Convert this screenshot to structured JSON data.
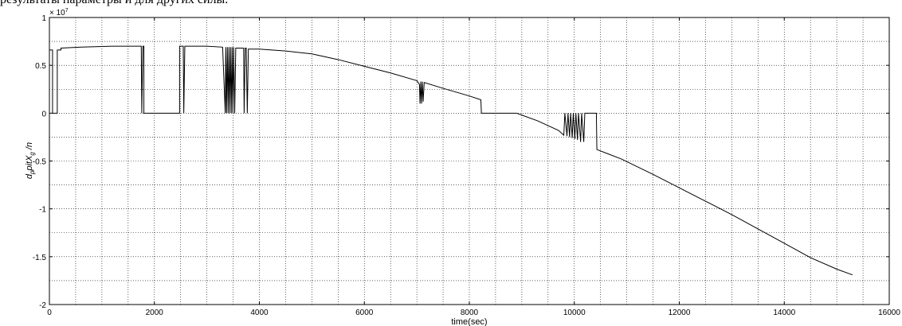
{
  "header_text": "результаты параметры и для других силы.",
  "chart_data": {
    "type": "line",
    "xlabel": "time(sec)",
    "ylabel": "d_p pitX_g /n",
    "ylabel_parts": {
      "base": "d",
      "sub1": "p",
      "mid": "pitX",
      "sub2": "g",
      "tail": " /n"
    },
    "exponent_label": "× 10",
    "exponent_power": "7",
    "xlim": [
      0,
      16000
    ],
    "ylim": [
      -2,
      1
    ],
    "x_ticks": [
      0,
      2000,
      4000,
      6000,
      8000,
      10000,
      12000,
      14000,
      16000
    ],
    "x_tick_labels": [
      "0",
      "2000",
      "4000",
      "6000",
      "8000",
      "10000",
      "12000",
      "14000",
      "16000"
    ],
    "y_ticks": [
      1,
      0.5,
      0,
      -0.5,
      -1,
      -1.5,
      -2
    ],
    "y_tick_labels": [
      "1",
      "0.5",
      "0",
      "-0.5",
      "-1",
      "-1.5",
      "-2"
    ],
    "grid": true,
    "grid_minor_x_step": 500,
    "grid_minor_y_step": 0.25,
    "line_color": "#000000",
    "series": [
      {
        "points": [
          [
            0,
            0
          ],
          [
            0,
            0.66
          ],
          [
            60,
            0.66
          ],
          [
            60,
            0
          ],
          [
            150,
            0
          ],
          [
            150,
            0.66
          ],
          [
            220,
            0.66
          ],
          [
            220,
            0.68
          ],
          [
            600,
            0.69
          ],
          [
            1200,
            0.7
          ],
          [
            1750,
            0.7
          ],
          [
            1760,
            0
          ],
          [
            1780,
            0.7
          ],
          [
            1800,
            0.7
          ],
          [
            1800,
            0
          ],
          [
            2480,
            0
          ],
          [
            2480,
            0.7
          ],
          [
            2550,
            0.7
          ],
          [
            2560,
            0
          ],
          [
            2580,
            0.7
          ],
          [
            3000,
            0.7
          ],
          [
            3300,
            0.69
          ],
          [
            3350,
            0
          ],
          [
            3360,
            0.69
          ],
          [
            3375,
            0
          ],
          [
            3390,
            0.69
          ],
          [
            3405,
            0
          ],
          [
            3420,
            0.69
          ],
          [
            3435,
            0
          ],
          [
            3450,
            0.69
          ],
          [
            3465,
            0
          ],
          [
            3480,
            0.69
          ],
          [
            3495,
            0
          ],
          [
            3510,
            0.69
          ],
          [
            3530,
            0
          ],
          [
            3550,
            0.68
          ],
          [
            3700,
            0.68
          ],
          [
            3710,
            0
          ],
          [
            3730,
            0.68
          ],
          [
            3750,
            0.68
          ],
          [
            3770,
            0
          ],
          [
            3790,
            0.67
          ],
          [
            4000,
            0.67
          ],
          [
            4500,
            0.65
          ],
          [
            5000,
            0.62
          ],
          [
            5500,
            0.56
          ],
          [
            6000,
            0.49
          ],
          [
            6500,
            0.42
          ],
          [
            7000,
            0.34
          ],
          [
            7050,
            0.3
          ],
          [
            7060,
            0.1
          ],
          [
            7075,
            0.33
          ],
          [
            7090,
            0.1
          ],
          [
            7105,
            0.33
          ],
          [
            7120,
            0.12
          ],
          [
            7140,
            0.32
          ],
          [
            7500,
            0.26
          ],
          [
            8000,
            0.18
          ],
          [
            8220,
            0.14
          ],
          [
            8230,
            0
          ],
          [
            8900,
            0
          ],
          [
            9000,
            -0.02
          ],
          [
            9300,
            -0.08
          ],
          [
            9700,
            -0.18
          ],
          [
            9800,
            -0.23
          ],
          [
            9820,
            0
          ],
          [
            9860,
            -0.24
          ],
          [
            9880,
            0
          ],
          [
            9910,
            -0.25
          ],
          [
            9930,
            0
          ],
          [
            9960,
            -0.26
          ],
          [
            9980,
            0
          ],
          [
            10010,
            -0.27
          ],
          [
            10030,
            0
          ],
          [
            10060,
            -0.28
          ],
          [
            10080,
            0
          ],
          [
            10120,
            -0.3
          ],
          [
            10140,
            0
          ],
          [
            10180,
            -0.3
          ],
          [
            10200,
            0
          ],
          [
            10420,
            0
          ],
          [
            10430,
            -0.38
          ],
          [
            10900,
            -0.48
          ],
          [
            11500,
            -0.64
          ],
          [
            12000,
            -0.78
          ],
          [
            12500,
            -0.92
          ],
          [
            13000,
            -1.06
          ],
          [
            13500,
            -1.21
          ],
          [
            14000,
            -1.36
          ],
          [
            14500,
            -1.51
          ],
          [
            15000,
            -1.63
          ],
          [
            15300,
            -1.69
          ]
        ]
      }
    ]
  }
}
